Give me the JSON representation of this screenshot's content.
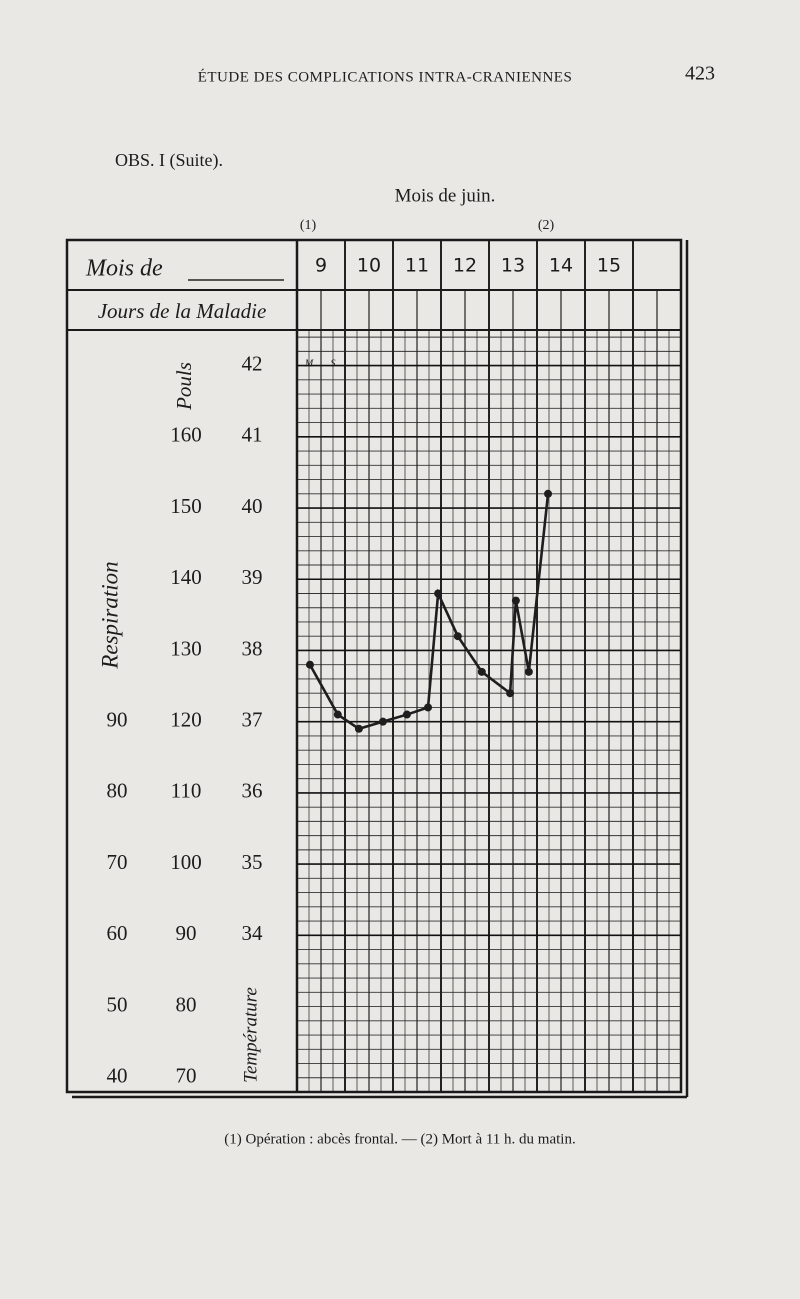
{
  "header": {
    "title": "ÉTUDE DES COMPLICATIONS INTRA-CRANIENNES",
    "page": "423",
    "observation": "OBS. I (Suite)."
  },
  "chart_data": {
    "type": "line",
    "title": "Mois de juin.",
    "notes": [
      "(1)",
      "(2)"
    ],
    "row_labels": [
      "Mois de",
      "Jours de la Maladie"
    ],
    "categories": [
      "9",
      "10",
      "11",
      "12",
      "13",
      "14",
      "15"
    ],
    "half_days": [
      "M",
      "S"
    ],
    "x": [
      9.27,
      9.85,
      10.29,
      10.79,
      11.29,
      11.73,
      11.94,
      12.35,
      12.85,
      13.44,
      13.56,
      13.83,
      14.23
    ],
    "series": [
      {
        "color": "#1e1e1e",
        "values": [
          37.8,
          37.1,
          36.9,
          37.0,
          37.1,
          37.2,
          38.8,
          38.2,
          37.7,
          37.4,
          38.7,
          37.7,
          40.2
        ]
      }
    ],
    "xlim": [
      9,
      17
    ],
    "ylim": [
      31.8,
      42.5
    ],
    "yticks": [
      34,
      35,
      36,
      37,
      38,
      39,
      40,
      41,
      42
    ],
    "ylabel": "Température",
    "y2lim": [
      68,
      175
    ],
    "y2ticks": [
      70,
      80,
      90,
      100,
      110,
      120,
      130,
      140,
      150,
      160
    ],
    "y2label": "Pouls",
    "y3lim": [
      38,
      145
    ],
    "y3ticks": [
      40,
      50,
      60,
      70,
      80,
      90
    ],
    "y3label": "Respiration",
    "grid": true
  },
  "footnote": "(1) Opération : abcès frontal. — (2) Mort à 11 h. du matin."
}
